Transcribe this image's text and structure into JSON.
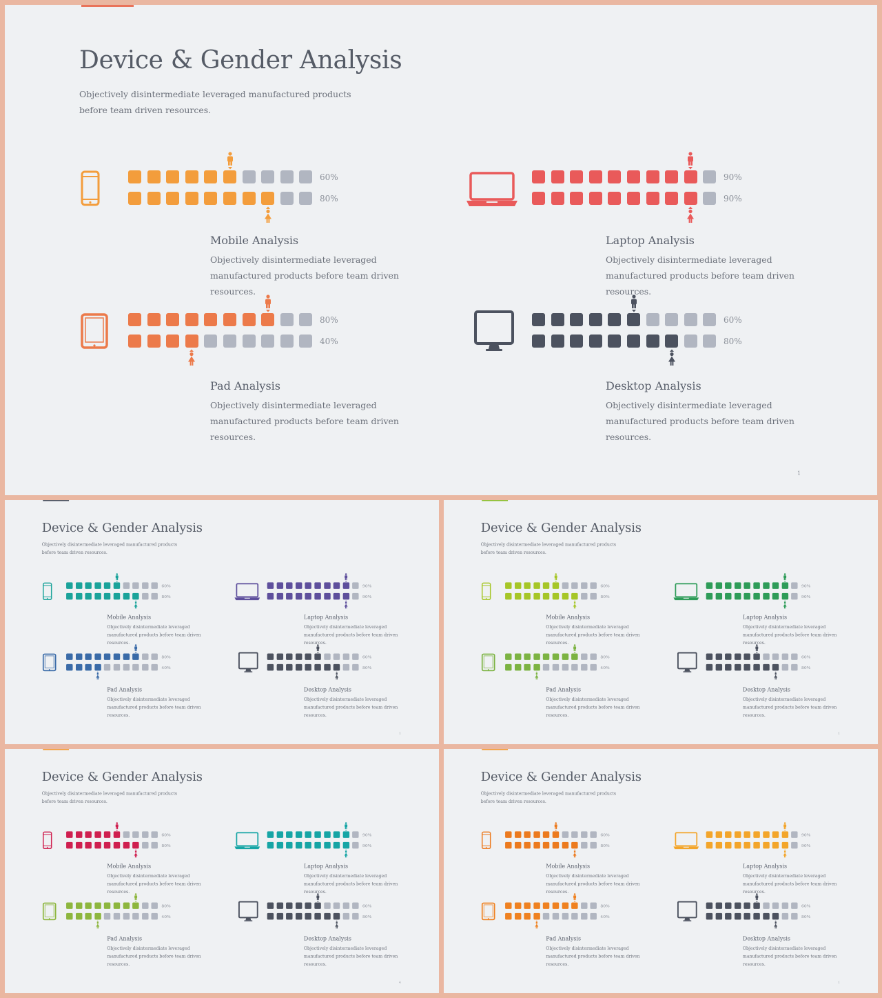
{
  "title": "Device & Gender Analysis",
  "subtitle": "Objectively disintermediate leveraged manufactured products before team driven resources.",
  "panel_desc": "Objectively disintermediate leveraged manufactured products before team  driven resources.",
  "panels": [
    {
      "key": "mobile",
      "name": "Mobile Analysis",
      "male_pct": "60%",
      "female_pct": "80%",
      "male_filled": 6,
      "female_filled": 8,
      "total": 10
    },
    {
      "key": "laptop",
      "name": "Laptop Analysis",
      "male_pct": "90%",
      "female_pct": "90%",
      "male_filled": 9,
      "female_filled": 9,
      "total": 10
    },
    {
      "key": "pad",
      "name": "Pad Analysis",
      "male_pct": "80%",
      "female_pct": "40%",
      "male_filled": 8,
      "female_filled": 4,
      "total": 10
    },
    {
      "key": "desktop",
      "name": "Desktop Analysis",
      "male_pct": "60%",
      "female_pct": "80%",
      "male_filled": 6,
      "female_filled": 8,
      "total": 10
    }
  ],
  "slides": [
    {
      "page": "1",
      "accent": "#e9735a",
      "colors": {
        "mobile": "#f39d3c",
        "laptop": "#e95a5a",
        "pad": "#ec7a4a",
        "desktop": "#4c525f"
      }
    },
    {
      "page": "1",
      "accent": "#4c525f",
      "colors": {
        "mobile": "#1aa39a",
        "laptop": "#5e4f9c",
        "pad": "#3a6ba8",
        "desktop": "#4c525f"
      }
    },
    {
      "page": "1",
      "accent": "#8dbf2f",
      "colors": {
        "mobile": "#a6c627",
        "laptop": "#2e9c58",
        "pad": "#7cb342",
        "desktop": "#4c525f"
      }
    },
    {
      "page": "4",
      "accent": "#f39d3c",
      "colors": {
        "mobile": "#cf1f4f",
        "laptop": "#16a5a5",
        "pad": "#8db63e",
        "desktop": "#4c525f"
      }
    },
    {
      "page": "1",
      "accent": "#f39d3c",
      "colors": {
        "mobile": "#ec7a1e",
        "laptop": "#f3a52a",
        "pad": "#ef8120",
        "desktop": "#4c525f"
      }
    }
  ],
  "empty_color": "#b1b6c1",
  "icons": {
    "mobile": "smartphone-icon",
    "laptop": "laptop-icon",
    "pad": "tablet-icon",
    "desktop": "desktop-monitor-icon",
    "male": "male-person-icon",
    "female": "female-person-icon"
  }
}
